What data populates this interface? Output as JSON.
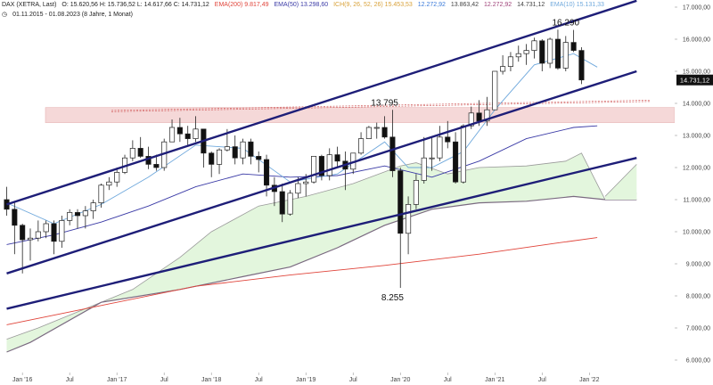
{
  "header": {
    "symbol": "DAX (XETRA, Last)",
    "ohlc": "O: 15.620,56  H: 15.736,52  L: 14.617,66  C: 14.731,12",
    "ema200": "EMA(200) 9.817,49",
    "ema50": "EMA(50) 13.298,60",
    "ichimoku": "ICH(9, 26, 52, 26) 15.453,53",
    "ich_values": [
      "12.272,92",
      "13.863,42",
      "12.272,92",
      "14.731,12"
    ],
    "ema10": "EMA(10) 15.131,33",
    "range": "01.11.2015 - 01.08.2023  (8 Jahre, 1 Monat)"
  },
  "colors": {
    "candle_up": "#ffffff",
    "candle_down": "#111111",
    "ema200": "#e0443a",
    "ema50": "#3a3aa6",
    "ema10": "#6fa8dc",
    "cloud_fill": "#e3f6dd",
    "cloud_line": "#7a6a80",
    "trendline": "#1e1e78",
    "resistance_zone": "#f5d8d8",
    "last_price_bg": "#111111"
  },
  "last_price_label": "14.731,12",
  "chart_data": {
    "type": "candlestick",
    "title": "DAX (XETRA, Last)",
    "frequency": "monthly",
    "ylim": [
      6000,
      17000
    ],
    "y_ticks": [
      "17.000,00",
      "16.000,00",
      "15.000,00",
      "14.000,00",
      "13.000,00",
      "12.000,00",
      "11.000,00",
      "10.000,00",
      "9.000,00",
      "8.000,00",
      "7.000,00",
      "6.000,00"
    ],
    "y_tick_values": [
      17000,
      16000,
      15000,
      14000,
      13000,
      12000,
      11000,
      10000,
      9000,
      8000,
      7000,
      6000
    ],
    "x_ticks": [
      {
        "label": "Jan '16",
        "m": 2
      },
      {
        "label": "Jul",
        "m": 8
      },
      {
        "label": "Jan '17",
        "m": 14
      },
      {
        "label": "Jul",
        "m": 20
      },
      {
        "label": "Jan '18",
        "m": 26
      },
      {
        "label": "Jul",
        "m": 32
      },
      {
        "label": "Jan '19",
        "m": 38
      },
      {
        "label": "Jul",
        "m": 44
      },
      {
        "label": "Jan '20",
        "m": 50
      },
      {
        "label": "Jul",
        "m": 56
      },
      {
        "label": "Jan '21",
        "m": 62
      },
      {
        "label": "Jul",
        "m": 68
      },
      {
        "label": "Jan '22",
        "m": 74
      }
    ],
    "ohlc": [
      [
        11000,
        11400,
        10500,
        10700
      ],
      [
        10700,
        10900,
        9300,
        10200
      ],
      [
        10200,
        10250,
        8700,
        9750
      ],
      [
        9750,
        10100,
        9100,
        9800
      ],
      [
        9800,
        10350,
        9700,
        10000
      ],
      [
        10000,
        10350,
        9800,
        10250
      ],
      [
        10250,
        10350,
        9300,
        9700
      ],
      [
        9700,
        10500,
        9500,
        10350
      ],
      [
        10350,
        10700,
        10200,
        10600
      ],
      [
        10600,
        10700,
        10100,
        10500
      ],
      [
        10500,
        10800,
        10100,
        10650
      ],
      [
        10650,
        11000,
        10400,
        10900
      ],
      [
        10900,
        11500,
        10750,
        11450
      ],
      [
        11450,
        11700,
        11300,
        11550
      ],
      [
        11550,
        12000,
        11400,
        11850
      ],
      [
        11850,
        12400,
        11800,
        12300
      ],
      [
        12300,
        12850,
        12200,
        12600
      ],
      [
        12600,
        12950,
        12300,
        12350
      ],
      [
        12350,
        12650,
        11950,
        12100
      ],
      [
        12100,
        12400,
        11900,
        12000
      ],
      [
        12000,
        12900,
        11900,
        12800
      ],
      [
        12800,
        13500,
        12800,
        13250
      ],
      [
        13250,
        13550,
        12800,
        13050
      ],
      [
        13050,
        13300,
        12700,
        12900
      ],
      [
        12900,
        13600,
        12800,
        13200
      ],
      [
        13200,
        13200,
        12000,
        12450
      ],
      [
        12450,
        12500,
        11700,
        12100
      ],
      [
        12100,
        12600,
        11800,
        12550
      ],
      [
        12550,
        13200,
        12500,
        12650
      ],
      [
        12650,
        13000,
        12100,
        12300
      ],
      [
        12300,
        12900,
        12100,
        12800
      ],
      [
        12800,
        12900,
        12100,
        12350
      ],
      [
        12350,
        12500,
        11850,
        12250
      ],
      [
        12250,
        12400,
        11100,
        11450
      ],
      [
        11450,
        11700,
        10800,
        11250
      ],
      [
        11250,
        11500,
        10300,
        10550
      ],
      [
        10550,
        11300,
        10500,
        11200
      ],
      [
        11200,
        11700,
        11050,
        11500
      ],
      [
        11500,
        11800,
        11100,
        11550
      ],
      [
        11550,
        12300,
        11500,
        12350
      ],
      [
        12350,
        12400,
        11600,
        11750
      ],
      [
        11750,
        12600,
        11600,
        12400
      ],
      [
        12400,
        12650,
        12000,
        12200
      ],
      [
        12200,
        12500,
        11300,
        11950
      ],
      [
        11950,
        12450,
        11800,
        12450
      ],
      [
        12450,
        13100,
        12400,
        12900
      ],
      [
        12900,
        13300,
        12900,
        13250
      ],
      [
        13250,
        13400,
        12900,
        13250
      ],
      [
        13250,
        13600,
        12900,
        12950
      ],
      [
        12950,
        13800,
        11700,
        11900
      ],
      [
        11900,
        12000,
        8250,
        9950
      ],
      [
        9950,
        11100,
        9300,
        10850
      ],
      [
        10850,
        11800,
        10700,
        11600
      ],
      [
        11600,
        12950,
        11500,
        12300
      ],
      [
        12300,
        12950,
        11900,
        12300
      ],
      [
        12300,
        13300,
        12200,
        12950
      ],
      [
        12950,
        13450,
        12600,
        12800
      ],
      [
        12800,
        13100,
        11500,
        11550
      ],
      [
        11550,
        13350,
        11500,
        13300
      ],
      [
        13300,
        13900,
        13200,
        13700
      ],
      [
        13700,
        14100,
        13300,
        13450
      ],
      [
        13450,
        14200,
        13300,
        13800
      ],
      [
        13800,
        15000,
        13800,
        15000
      ],
      [
        15000,
        15500,
        14900,
        15150
      ],
      [
        15150,
        15600,
        15000,
        15450
      ],
      [
        15450,
        15800,
        15300,
        15550
      ],
      [
        15550,
        15850,
        15200,
        15650
      ],
      [
        15650,
        16050,
        15400,
        15950
      ],
      [
        15950,
        16000,
        15000,
        15250
      ],
      [
        15250,
        16050,
        15100,
        16000
      ],
      [
        16000,
        16300,
        15050,
        15100
      ],
      [
        15100,
        16100,
        15000,
        15900
      ],
      [
        15900,
        16290,
        15600,
        15650
      ],
      [
        15650,
        15750,
        14600,
        14730
      ]
    ],
    "ema10": [
      [
        0,
        10900
      ],
      [
        6,
        10250
      ],
      [
        12,
        10850
      ],
      [
        18,
        11700
      ],
      [
        24,
        12700
      ],
      [
        30,
        12600
      ],
      [
        36,
        11550
      ],
      [
        42,
        11800
      ],
      [
        48,
        12800
      ],
      [
        51,
        12000
      ],
      [
        54,
        12000
      ],
      [
        58,
        12500
      ],
      [
        62,
        13800
      ],
      [
        67,
        15200
      ],
      [
        72,
        15550
      ],
      [
        75,
        15130
      ]
    ],
    "ema50": [
      [
        0,
        9600
      ],
      [
        6,
        9900
      ],
      [
        12,
        10300
      ],
      [
        18,
        10800
      ],
      [
        24,
        11400
      ],
      [
        30,
        11800
      ],
      [
        36,
        11700
      ],
      [
        42,
        11750
      ],
      [
        48,
        12050
      ],
      [
        54,
        11700
      ],
      [
        60,
        12200
      ],
      [
        66,
        12900
      ],
      [
        72,
        13250
      ],
      [
        75,
        13300
      ]
    ],
    "ema200": [
      [
        0,
        7100
      ],
      [
        12,
        7700
      ],
      [
        24,
        8300
      ],
      [
        36,
        8650
      ],
      [
        48,
        8950
      ],
      [
        60,
        9300
      ],
      [
        70,
        9650
      ],
      [
        75,
        9817
      ]
    ],
    "cloud_span_a": [
      [
        0,
        6650
      ],
      [
        4,
        7000
      ],
      [
        10,
        7600
      ],
      [
        16,
        8200
      ],
      [
        22,
        9200
      ],
      [
        26,
        10000
      ],
      [
        32,
        10800
      ],
      [
        38,
        11100
      ],
      [
        44,
        11500
      ],
      [
        50,
        12050
      ],
      [
        52,
        12150
      ],
      [
        56,
        11800
      ],
      [
        60,
        12000
      ],
      [
        66,
        12050
      ],
      [
        71,
        12200
      ],
      [
        73,
        12450
      ],
      [
        76,
        11000
      ],
      [
        80,
        11200
      ]
    ],
    "cloud_span_b": [
      [
        0,
        6250
      ],
      [
        3,
        6550
      ],
      [
        12,
        7800
      ],
      [
        22,
        8200
      ],
      [
        30,
        8600
      ],
      [
        36,
        8900
      ],
      [
        42,
        9500
      ],
      [
        48,
        10200
      ],
      [
        54,
        10700
      ],
      [
        60,
        10900
      ],
      [
        66,
        10950
      ],
      [
        72,
        11100
      ],
      [
        76,
        11000
      ],
      [
        80,
        11000
      ]
    ],
    "cloud_top_extension": [
      [
        76,
        11100
      ],
      [
        78,
        11600
      ],
      [
        80,
        12100
      ]
    ],
    "trendlines": [
      {
        "name": "upper channel",
        "from": [
          0,
          10850
        ],
        "to": [
          80,
          17200
        ]
      },
      {
        "name": "middle channel",
        "from": [
          0,
          8700
        ],
        "to": [
          80,
          15000
        ]
      },
      {
        "name": "lower support",
        "from": [
          0,
          7600
        ],
        "to": [
          80,
          12300
        ]
      }
    ],
    "resistance_zone": [
      13400,
      13870
    ],
    "annotations": [
      {
        "text": "16.290",
        "m": 71,
        "v": 16290,
        "pos": "above"
      },
      {
        "text": "13.795",
        "m": 48,
        "v": 13795,
        "pos": "above"
      },
      {
        "text": "8.255",
        "m": 49,
        "v": 8250,
        "pos": "below"
      }
    ]
  }
}
